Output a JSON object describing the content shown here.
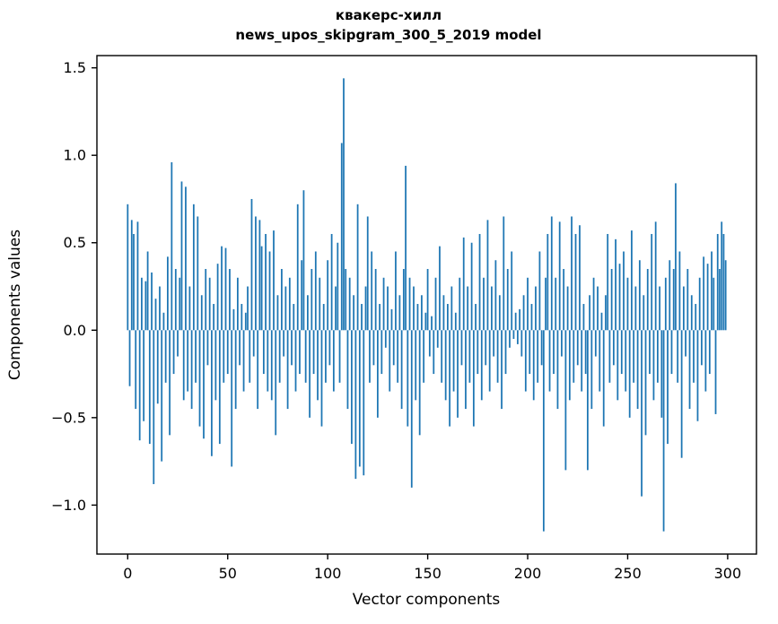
{
  "chart_data": {
    "type": "bar",
    "title": "квакерс-хилл",
    "subtitle": "news_upos_skipgram_300_5_2019 model",
    "xlabel": "Vector components",
    "ylabel": "Components values",
    "bar_color": "#1f77b4",
    "spine_color": "#000000",
    "xlim": [
      -15.4,
      314.4
    ],
    "ylim": [
      -1.28,
      1.57
    ],
    "grid": false,
    "legend": "none",
    "xticks": [
      {
        "v": 0,
        "label": "0"
      },
      {
        "v": 50,
        "label": "50"
      },
      {
        "v": 100,
        "label": "100"
      },
      {
        "v": 150,
        "label": "150"
      },
      {
        "v": 200,
        "label": "200"
      },
      {
        "v": 250,
        "label": "250"
      },
      {
        "v": 300,
        "label": "300"
      }
    ],
    "yticks": [
      {
        "v": 1.5,
        "label": "1.5"
      },
      {
        "v": 1.0,
        "label": "1.0"
      },
      {
        "v": 0.5,
        "label": "0.5"
      },
      {
        "v": 0.0,
        "label": "0.0"
      },
      {
        "v": -0.5,
        "label": "−0.5"
      },
      {
        "v": -1.0,
        "label": "−1.0"
      }
    ],
    "x_start": 0,
    "bar_width_units": 0.8,
    "values": [
      0.72,
      -0.32,
      0.63,
      0.55,
      -0.45,
      0.62,
      -0.63,
      0.3,
      -0.52,
      0.28,
      0.45,
      -0.65,
      0.33,
      -0.88,
      0.18,
      -0.42,
      0.25,
      -0.75,
      0.1,
      -0.3,
      0.42,
      -0.6,
      0.96,
      -0.25,
      0.35,
      -0.15,
      0.3,
      0.85,
      -0.4,
      0.82,
      -0.35,
      0.25,
      -0.45,
      0.72,
      -0.3,
      0.65,
      -0.55,
      0.2,
      -0.62,
      0.35,
      -0.2,
      0.3,
      -0.72,
      0.15,
      -0.4,
      0.38,
      -0.65,
      0.48,
      -0.3,
      0.47,
      -0.25,
      0.35,
      -0.78,
      0.12,
      -0.45,
      0.3,
      -0.2,
      0.15,
      -0.35,
      0.1,
      0.25,
      -0.3,
      0.75,
      -0.15,
      0.65,
      -0.45,
      0.63,
      0.48,
      -0.25,
      0.55,
      -0.35,
      0.45,
      -0.4,
      0.57,
      -0.6,
      0.2,
      -0.3,
      0.35,
      -0.15,
      0.25,
      -0.45,
      0.3,
      -0.2,
      0.15,
      -0.35,
      0.72,
      -0.25,
      0.4,
      0.8,
      -0.3,
      0.2,
      -0.5,
      0.35,
      -0.25,
      0.45,
      -0.4,
      0.3,
      -0.55,
      0.15,
      -0.3,
      0.4,
      -0.2,
      0.55,
      -0.35,
      0.25,
      0.5,
      -0.3,
      1.07,
      1.44,
      0.35,
      -0.45,
      0.3,
      -0.65,
      0.2,
      -0.85,
      0.72,
      -0.78,
      0.15,
      -0.83,
      0.25,
      0.65,
      -0.3,
      0.45,
      -0.2,
      0.35,
      -0.5,
      0.15,
      -0.25,
      0.3,
      -0.1,
      0.25,
      -0.35,
      0.12,
      -0.2,
      0.45,
      -0.3,
      0.2,
      -0.45,
      0.35,
      0.94,
      -0.55,
      0.3,
      -0.9,
      0.25,
      -0.4,
      0.15,
      -0.6,
      0.2,
      -0.3,
      0.1,
      0.35,
      -0.15,
      0.08,
      -0.25,
      0.3,
      -0.1,
      0.48,
      -0.3,
      0.2,
      -0.4,
      0.15,
      -0.55,
      0.25,
      -0.35,
      0.1,
      -0.5,
      0.3,
      -0.2,
      0.53,
      -0.45,
      0.25,
      -0.3,
      0.5,
      -0.55,
      0.15,
      -0.25,
      0.55,
      -0.4,
      0.3,
      -0.2,
      0.63,
      -0.35,
      0.25,
      -0.15,
      0.4,
      -0.3,
      0.2,
      -0.45,
      0.65,
      -0.25,
      0.35,
      -0.1,
      0.45,
      -0.05,
      0.1,
      -0.08,
      0.12,
      -0.15,
      0.2,
      -0.35,
      0.3,
      -0.25,
      0.15,
      -0.4,
      0.25,
      -0.3,
      0.45,
      -0.2,
      -1.15,
      0.3,
      0.55,
      -0.35,
      0.65,
      -0.25,
      0.3,
      -0.45,
      0.62,
      -0.15,
      0.35,
      -0.8,
      0.25,
      -0.4,
      0.65,
      -0.3,
      0.55,
      -0.2,
      0.6,
      -0.35,
      0.15,
      -0.25,
      -0.8,
      0.2,
      -0.45,
      0.3,
      -0.15,
      0.25,
      -0.35,
      0.1,
      -0.55,
      0.2,
      0.55,
      -0.3,
      0.35,
      -0.2,
      0.52,
      -0.4,
      0.38,
      -0.25,
      0.45,
      -0.35,
      0.3,
      -0.5,
      0.57,
      -0.3,
      0.25,
      -0.45,
      0.4,
      -0.95,
      0.2,
      -0.6,
      0.35,
      -0.25,
      0.55,
      -0.4,
      0.62,
      -0.3,
      0.25,
      -0.5,
      -1.15,
      0.3,
      -0.65,
      0.4,
      -0.25,
      0.35,
      0.84,
      -0.3,
      0.45,
      -0.73,
      0.25,
      -0.15,
      0.35,
      -0.45,
      0.2,
      -0.3,
      0.15,
      -0.52,
      0.3,
      -0.2,
      0.42,
      -0.35,
      0.38,
      -0.25,
      0.45,
      0.3,
      -0.48,
      0.55,
      0.35,
      0.62,
      0.55,
      0.4
    ]
  }
}
